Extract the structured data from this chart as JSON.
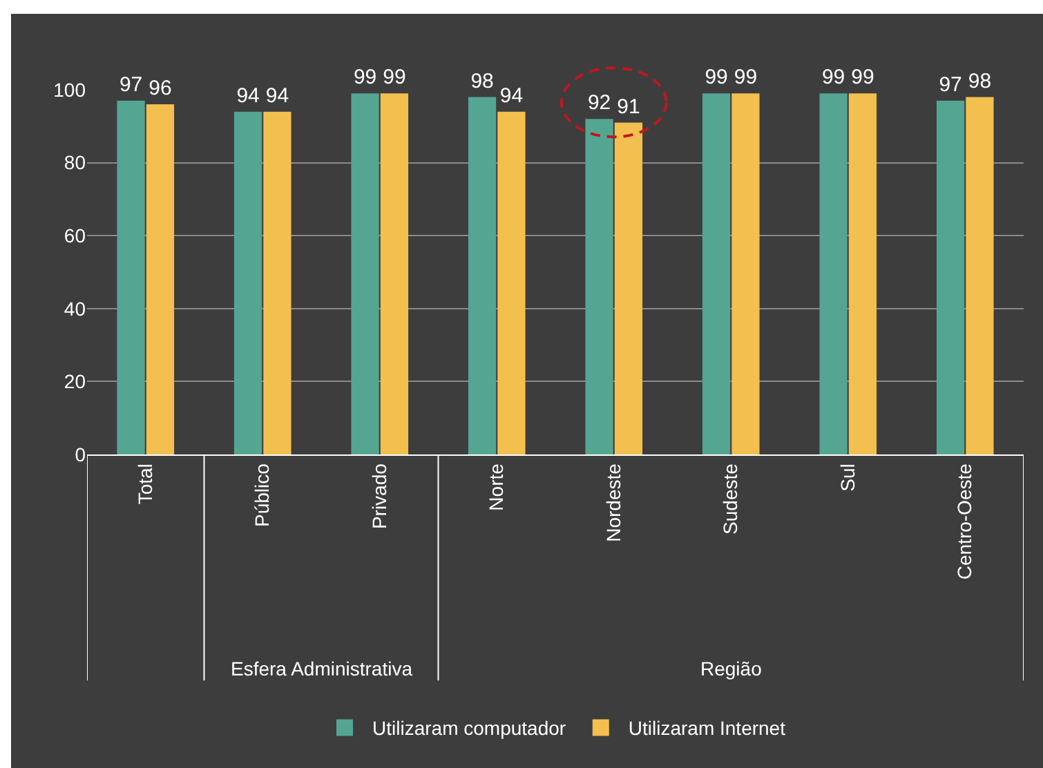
{
  "chart_data": {
    "type": "bar",
    "categories": [
      "Total",
      "Público",
      "Privado",
      "Norte",
      "Nordeste",
      "Sudeste",
      "Sul",
      "Centro-Oeste"
    ],
    "series": [
      {
        "name": "Utilizaram computador",
        "color": "#55a593",
        "values": [
          97,
          94,
          99,
          98,
          92,
          99,
          99,
          97
        ]
      },
      {
        "name": "Utilizaram Internet",
        "color": "#f3bf4f",
        "values": [
          96,
          94,
          99,
          94,
          91,
          99,
          99,
          98
        ]
      }
    ],
    "ylim": [
      0,
      100
    ],
    "yticks": [
      0,
      20,
      40,
      60,
      80,
      100
    ],
    "grid": "y",
    "legend": "bottom",
    "data_labels": true,
    "annotations": [
      "Esfera Administrativa",
      "Região"
    ]
  }
}
